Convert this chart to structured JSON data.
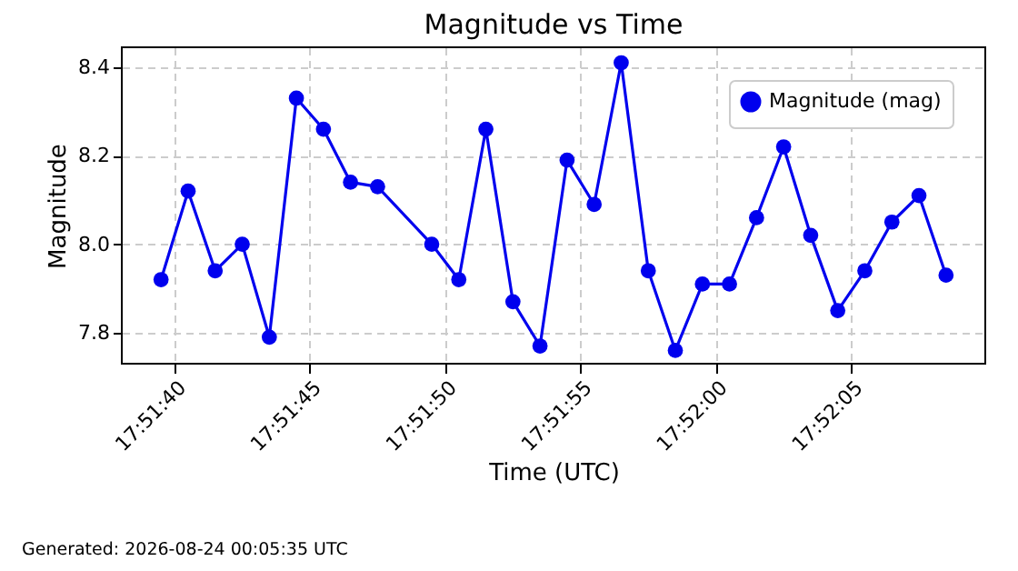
{
  "chart_data": {
    "type": "line",
    "title": "Magnitude vs Time",
    "xlabel": "Time (UTC)",
    "ylabel": "Magnitude",
    "x": [
      "2026-08-23T17:51:39.5",
      "2026-08-23T17:51:40.5",
      "2026-08-23T17:51:41.5",
      "2026-08-23T17:51:42.5",
      "2026-08-23T17:51:43.5",
      "2026-08-23T17:51:44.5",
      "2026-08-23T17:51:45.5",
      "2026-08-23T17:51:46.5",
      "2026-08-23T17:51:47.5",
      "2026-08-23T17:51:49.5",
      "2026-08-23T17:51:50.5",
      "2026-08-23T17:51:51.5",
      "2026-08-23T17:51:52.5",
      "2026-08-23T17:51:53.5",
      "2026-08-23T17:51:54.5",
      "2026-08-23T17:51:55.5",
      "2026-08-23T17:51:56.5",
      "2026-08-23T17:51:57.5",
      "2026-08-23T17:51:58.5",
      "2026-08-23T17:51:59.5",
      "2026-08-23T17:52:00.5",
      "2026-08-23T17:52:01.5",
      "2026-08-23T17:52:02.5",
      "2026-08-23T17:52:03.5",
      "2026-08-23T17:52:04.5",
      "2026-08-23T17:52:05.5",
      "2026-08-23T17:52:06.5",
      "2026-08-23T17:52:07.5",
      "2026-08-23T17:52:08.5"
    ],
    "series": [
      {
        "name": "Magnitude (mag)",
        "color": "#0000ee",
        "values": [
          7.92,
          8.12,
          7.94,
          8.0,
          7.79,
          8.33,
          8.26,
          8.14,
          8.13,
          8.0,
          7.92,
          8.26,
          7.87,
          7.77,
          8.19,
          8.09,
          8.41,
          7.94,
          7.76,
          7.91,
          7.91,
          8.06,
          8.22,
          8.02,
          7.85,
          7.94,
          8.05,
          8.11,
          7.93
        ]
      }
    ],
    "xlim": [
      "2026-08-23T17:51:38.05",
      "2026-08-23T17:52:09.95"
    ],
    "xticks": [
      {
        "value": "2026-08-23T17:51:40",
        "label": "17:51:40"
      },
      {
        "value": "2026-08-23T17:51:45",
        "label": "17:51:45"
      },
      {
        "value": "2026-08-23T17:51:50",
        "label": "17:51:50"
      },
      {
        "value": "2026-08-23T17:51:55",
        "label": "17:51:55"
      },
      {
        "value": "2026-08-23T17:52:00",
        "label": "17:52:00"
      },
      {
        "value": "2026-08-23T17:52:05",
        "label": "17:52:05"
      }
    ],
    "ylim": [
      7.73,
      8.445
    ],
    "yticks": [
      {
        "value": 7.8,
        "label": "7.8"
      },
      {
        "value": 8.0,
        "label": "8.0"
      },
      {
        "value": 8.2,
        "label": "8.2"
      },
      {
        "value": 8.4,
        "label": "8.4"
      }
    ],
    "grid": true,
    "legend": "top right",
    "marker": "circle",
    "line_style": "solid",
    "annotations": [
      "Generated: 2026-08-24 00:05:35 UTC"
    ]
  }
}
